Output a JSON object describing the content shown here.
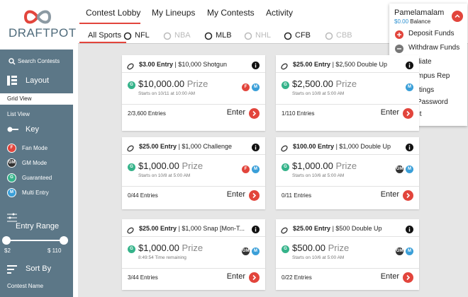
{
  "logo": "DRAFTPOT",
  "sidebar": {
    "search": "Search Contests",
    "layout": {
      "title": "Layout",
      "options": [
        "Grid View",
        "List View"
      ],
      "selected": 0
    },
    "key": {
      "title": "Key",
      "items": [
        {
          "badge": "F",
          "label": "Fan Mode",
          "color": "#e2453c"
        },
        {
          "badge": "GM",
          "label": "GM Mode",
          "color": "#333333"
        },
        {
          "badge": "G",
          "label": "Guaranteed",
          "color": "#35b38a"
        },
        {
          "badge": "M",
          "label": "Multi Entry",
          "color": "#3a9fd8"
        }
      ]
    },
    "entry_range": {
      "title": "Entry Range",
      "min": "$2",
      "max": "$ 110"
    },
    "sort_by": {
      "title": "Sort By",
      "options": [
        "Contest Name"
      ]
    }
  },
  "nav": {
    "tabs": [
      "Contest Lobby",
      "My Lineups",
      "My Contests",
      "Activity"
    ],
    "active": 0
  },
  "sports": [
    {
      "label": "All Sports",
      "enabled": true
    },
    {
      "label": "NFL",
      "enabled": true
    },
    {
      "label": "NBA",
      "enabled": false
    },
    {
      "label": "MLB",
      "enabled": true
    },
    {
      "label": "NHL",
      "enabled": false
    },
    {
      "label": "CFB",
      "enabled": true
    },
    {
      "label": "CBB",
      "enabled": false
    }
  ],
  "contests": [
    {
      "entry": "$3.00 Entry",
      "name": "| $10,000 Shotgun",
      "prize_badge": "G",
      "prize": "$10,000.00",
      "prize_label": "Prize",
      "start": "Starts on 10/11 at 10:00 AM",
      "badges": [
        "F",
        "M"
      ],
      "entries": "2/3,600 Entries",
      "action": "Enter"
    },
    {
      "entry": "$25.00 Entry",
      "name": "| $2,500 Double Up",
      "prize_badge": "G",
      "prize": "$2,500.00",
      "prize_label": "Prize",
      "start": "Starts on 10/8 at 5:00 AM",
      "badges": [
        "M"
      ],
      "entries": "1/110 Entries",
      "action": "Enter"
    },
    {
      "entry": "$25.00 Entry",
      "name": "| $1,000 Challenge",
      "prize_badge": "G",
      "prize": "$1,000.00",
      "prize_label": "Prize",
      "start": "Starts on 10/8 at 5:00 AM",
      "badges": [
        "F",
        "M"
      ],
      "entries": "0/44 Entries",
      "action": "Enter"
    },
    {
      "entry": "$100.00 Entry",
      "name": "| $1,000 Double Up",
      "prize_badge": "G",
      "prize": "$1,000.00",
      "prize_label": "Prize",
      "start": "Starts on 10/6 at 5:00 AM",
      "badges": [
        "GM",
        "M"
      ],
      "entries": "0/11 Entries",
      "action": "Enter"
    },
    {
      "entry": "$25.00 Entry",
      "name": "| $1,000 Snap [Mon-T...",
      "prize_badge": "G",
      "prize": "$1,000.00",
      "prize_label": "Prize",
      "start": "8:49:54 Time remaining",
      "badges": [
        "GM",
        "M"
      ],
      "entries": "3/44 Entries",
      "action": "Enter"
    },
    {
      "entry": "$25.00 Entry",
      "name": "| $500 Double Up",
      "prize_badge": "G",
      "prize": "$500.00",
      "prize_label": "Prize",
      "start": "Starts on 10/6 at 5:00 AM",
      "badges": [
        "GM",
        "M"
      ],
      "entries": "0/22 Entries",
      "action": "Enter"
    }
  ],
  "account": {
    "user": "Pamelamalam",
    "balance": "$0.00",
    "balance_label": "Balance",
    "menu": [
      "Deposit Funds",
      "Withdraw Funds",
      "Affiliate",
      "Campus Rep",
      "Settings",
      "Reset Password",
      "Log Out"
    ]
  }
}
